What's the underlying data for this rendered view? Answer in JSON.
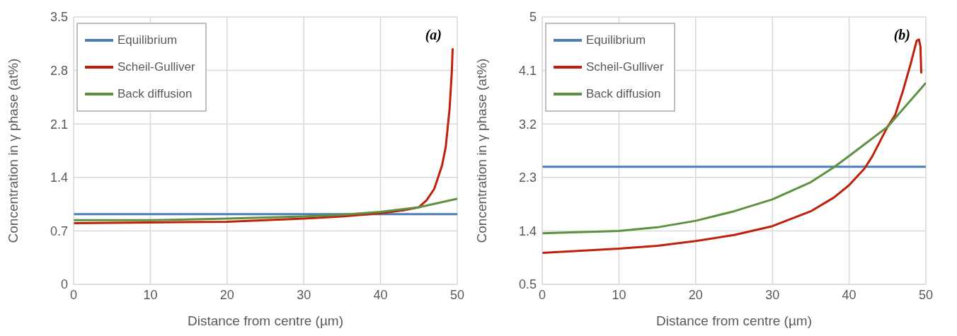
{
  "chart_data": [
    {
      "type": "line",
      "xlabel": "Distance from centre (µm)",
      "ylabel": "Concentration in γ phase (at%)",
      "annotations": [
        "(a)"
      ],
      "xlim": [
        0,
        50
      ],
      "xticks": [
        0,
        10,
        20,
        30,
        40,
        50
      ],
      "ylim": [
        0,
        3.5
      ],
      "yticks": [
        0,
        0.7,
        1.4,
        2.1,
        2.8,
        3.5
      ],
      "grid": true,
      "legend": "top left",
      "line_style": "solid",
      "marker": "none",
      "series": [
        {
          "name": "Equilibrium",
          "color": "#4a7ebb",
          "x": [
            0,
            50
          ],
          "values": [
            0.92,
            0.92
          ]
        },
        {
          "name": "Scheil-Gulliver",
          "color": "#c0200a",
          "x": [
            0,
            10,
            20,
            30,
            35,
            40,
            43,
            45,
            46,
            47,
            48,
            48.5,
            49,
            49.3,
            49.4
          ],
          "values": [
            0.8,
            0.81,
            0.82,
            0.86,
            0.89,
            0.93,
            0.97,
            1.01,
            1.1,
            1.25,
            1.55,
            1.8,
            2.3,
            2.8,
            3.09
          ]
        },
        {
          "name": "Back diffusion",
          "color": "#5e9040",
          "x": [
            0,
            10,
            20,
            30,
            35,
            40,
            45,
            50
          ],
          "values": [
            0.84,
            0.84,
            0.86,
            0.89,
            0.91,
            0.95,
            1.01,
            1.12
          ]
        }
      ]
    },
    {
      "type": "line",
      "xlabel": "Distance from centre (µm)",
      "ylabel": "Concentration in γ phase (at%)",
      "annotations": [
        "(b)"
      ],
      "xlim": [
        0,
        50
      ],
      "xticks": [
        0,
        10,
        20,
        30,
        40,
        50
      ],
      "ylim": [
        0.5,
        5
      ],
      "yticks": [
        0.5,
        1.4,
        2.3,
        3.2,
        4.1,
        5
      ],
      "grid": true,
      "legend": "top left",
      "line_style": "solid",
      "marker": "none",
      "series": [
        {
          "name": "Equilibrium",
          "color": "#4a7ebb",
          "x": [
            0,
            50
          ],
          "values": [
            2.48,
            2.48
          ]
        },
        {
          "name": "Scheil-Gulliver",
          "color": "#c0200a",
          "x": [
            0,
            10,
            15,
            20,
            25,
            30,
            35,
            38,
            40,
            42,
            43,
            45,
            46,
            47,
            48,
            48.8,
            49.1,
            49.3,
            49.4
          ],
          "values": [
            1.03,
            1.1,
            1.15,
            1.23,
            1.33,
            1.48,
            1.73,
            1.96,
            2.17,
            2.45,
            2.65,
            3.15,
            3.35,
            3.75,
            4.2,
            4.6,
            4.62,
            4.5,
            4.05
          ]
        },
        {
          "name": "Back diffusion",
          "color": "#5e9040",
          "x": [
            0,
            10,
            15,
            20,
            25,
            30,
            35,
            38,
            40,
            45,
            50
          ],
          "values": [
            1.36,
            1.4,
            1.46,
            1.57,
            1.73,
            1.93,
            2.22,
            2.47,
            2.66,
            3.15,
            3.89
          ]
        }
      ]
    }
  ]
}
